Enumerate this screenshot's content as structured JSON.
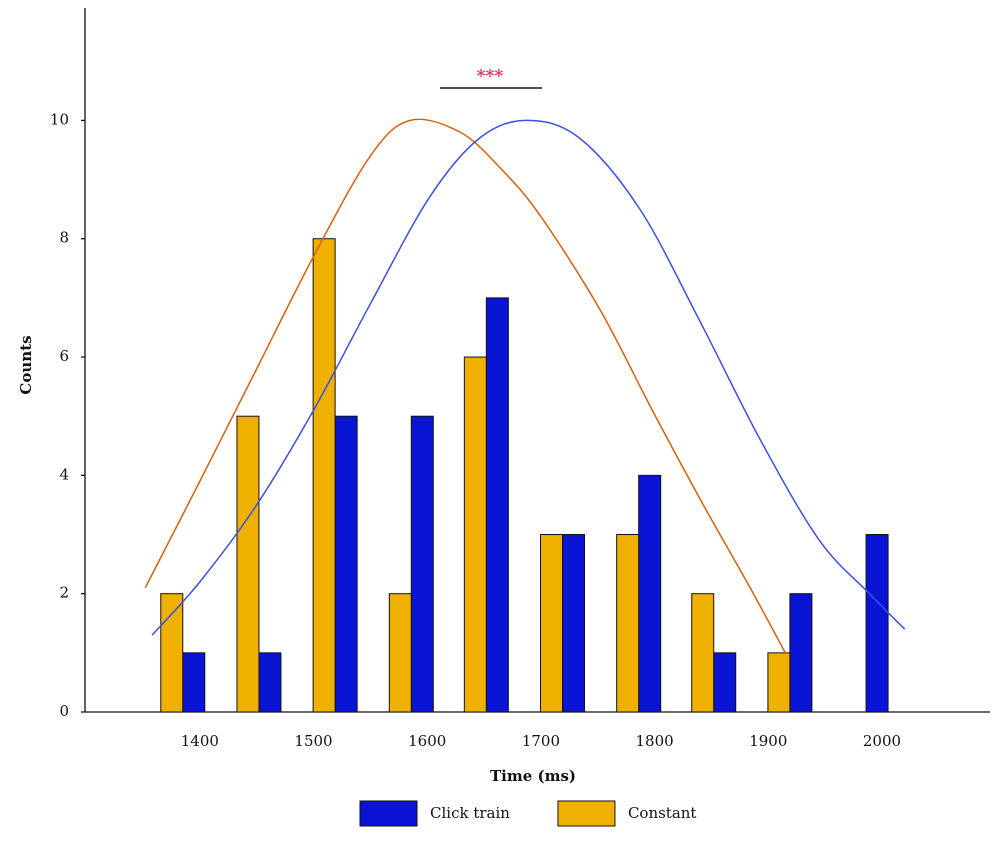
{
  "chart_data": {
    "type": "bar",
    "xlabel": "Time (ms)",
    "ylabel": "Counts",
    "annotation": "***",
    "x": [
      1385,
      1452,
      1519,
      1586,
      1652,
      1719,
      1786,
      1852,
      1919,
      1986
    ],
    "series": [
      {
        "name": "Click train",
        "color": "#0a14d4",
        "values": [
          1,
          1,
          5,
          5,
          7,
          3,
          4,
          1,
          2,
          3
        ]
      },
      {
        "name": "Constant",
        "color": "#f0b000",
        "values": [
          2,
          5,
          8,
          2,
          6,
          3,
          3,
          2,
          1,
          0
        ]
      }
    ],
    "curves": [
      {
        "color": "#d8600c",
        "x": [
          1352,
          1400,
          1450,
          1500,
          1550,
          1585,
          1629,
          1664,
          1699,
          1752,
          1798,
          1840,
          1884,
          1915
        ],
        "values": [
          2.1,
          3.9,
          5.8,
          7.7,
          9.4,
          10,
          9.8,
          9.2,
          8.4,
          6.8,
          5.1,
          3.6,
          2.1,
          1.0
        ]
      },
      {
        "color": "#3a50e0",
        "x": [
          1358,
          1400,
          1450,
          1500,
          1550,
          1602,
          1646,
          1688,
          1734,
          1787,
          1840,
          1893,
          1945,
          1989,
          2020
        ],
        "values": [
          1.3,
          2.2,
          3.5,
          5.1,
          6.9,
          8.7,
          9.7,
          10,
          9.7,
          8.5,
          6.6,
          4.6,
          2.9,
          2.0,
          1.4
        ]
      }
    ],
    "xlim": [
      1299,
      2095
    ],
    "ylim": [
      0,
      11.9
    ],
    "xticks": [
      1400,
      1500,
      1600,
      1700,
      1800,
      1900,
      2000
    ],
    "yticks": [
      0,
      2,
      4,
      6,
      8,
      10
    ],
    "legend": "bottom",
    "grid": false
  }
}
